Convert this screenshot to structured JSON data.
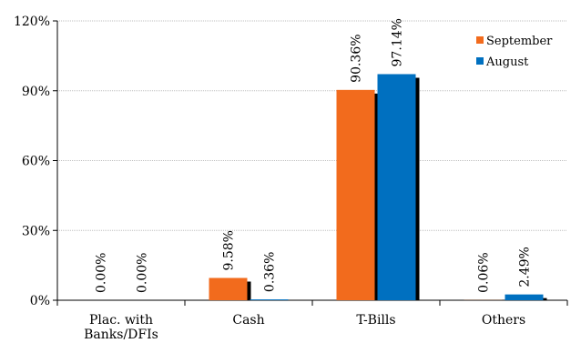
{
  "chart_data": {
    "type": "bar",
    "categories": [
      "Plac. with Banks/DFIs",
      "Cash",
      "T-Bills",
      "Others"
    ],
    "category_lines": [
      [
        "Plac. with",
        "Banks/DFIs"
      ],
      [
        "Cash"
      ],
      [
        "T-Bills"
      ],
      [
        "Others"
      ]
    ],
    "series": [
      {
        "name": "September",
        "color": "#F26B1D",
        "values": [
          0.0,
          9.58,
          90.36,
          0.06
        ],
        "labels": [
          "0.00%",
          "9.58%",
          "90.36%",
          "0.06%"
        ]
      },
      {
        "name": "August",
        "color": "#0070C0",
        "values": [
          0.0,
          0.36,
          97.14,
          2.49
        ],
        "labels": [
          "0.00%",
          "0.36%",
          "97.14%",
          "2.49%"
        ]
      }
    ],
    "yticks": [
      0,
      30,
      60,
      90,
      120
    ],
    "ytick_labels": [
      "0%",
      "30%",
      "60%",
      "90%",
      "120%"
    ],
    "ylim": [
      0,
      120
    ],
    "grid": true,
    "legend": "top-right",
    "title": "",
    "xlabel": "",
    "ylabel": ""
  }
}
